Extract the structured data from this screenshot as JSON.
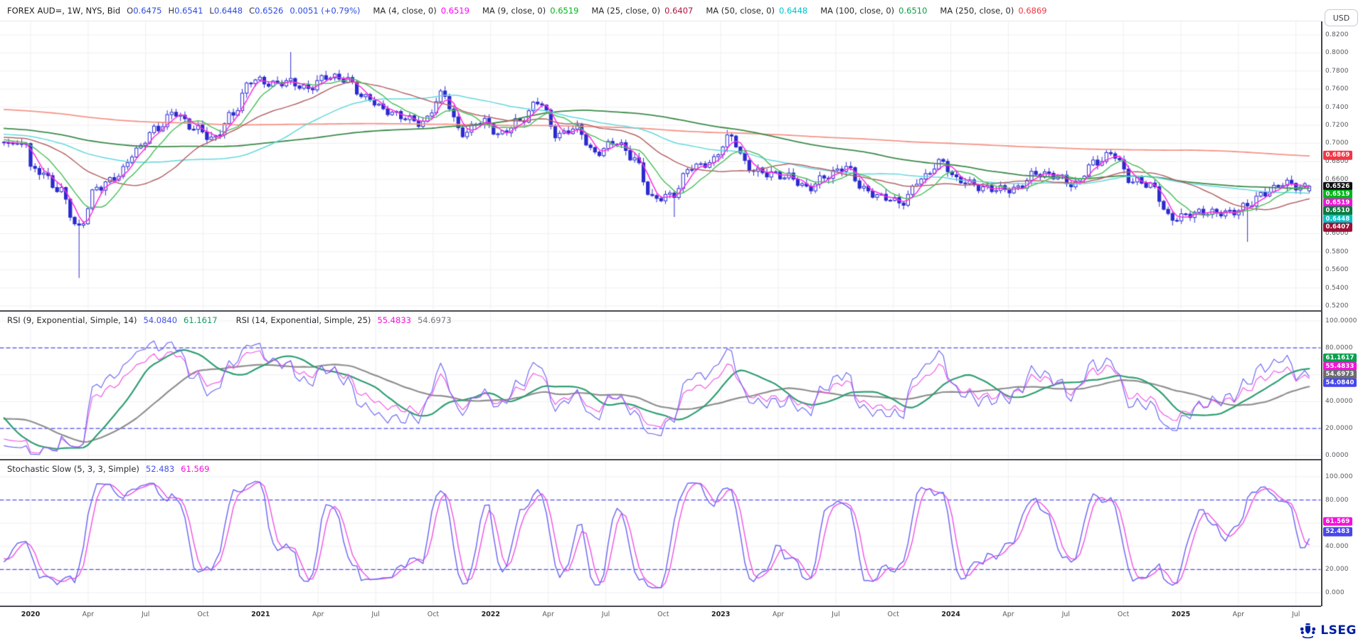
{
  "header": {
    "symbol": "FOREX AUD=, 1W, NYS, Bid",
    "quote_fields": [
      {
        "label": "O",
        "value": "0.6475"
      },
      {
        "label": "H",
        "value": "0.6541"
      },
      {
        "label": "L",
        "value": "0.6448"
      },
      {
        "label": "C",
        "value": "0.6526"
      }
    ],
    "change": "0.0051 (+0.79%)",
    "mas": [
      {
        "label": "MA (4, close, 0)",
        "value": "0.6519",
        "color": "#ff00ff"
      },
      {
        "label": "MA (9, close, 0)",
        "value": "0.6519",
        "color": "#00b61a"
      },
      {
        "label": "MA (25, close, 0)",
        "value": "0.6407",
        "color": "#b0143c"
      },
      {
        "label": "MA (50, close, 0)",
        "value": "0.6448",
        "color": "#00c2cb"
      },
      {
        "label": "MA (100, close, 0)",
        "value": "0.6510",
        "color": "#0d9b42"
      },
      {
        "label": "MA (250, close, 0)",
        "value": "0.6869",
        "color": "#f23645"
      }
    ],
    "currency_button": "USD"
  },
  "main_panel": {
    "y_ticks": [
      {
        "text": "0.8200",
        "value": 0.82
      },
      {
        "text": "0.8000",
        "value": 0.8
      },
      {
        "text": "0.7800",
        "value": 0.78
      },
      {
        "text": "0.7600",
        "value": 0.76
      },
      {
        "text": "0.7400",
        "value": 0.74
      },
      {
        "text": "0.7200",
        "value": 0.72
      },
      {
        "text": "0.7000",
        "value": 0.7
      },
      {
        "text": "0.6800",
        "value": 0.68
      },
      {
        "text": "0.6600",
        "value": 0.66
      },
      {
        "text": "0.6000",
        "value": 0.6
      },
      {
        "text": "0.5800",
        "value": 0.58
      },
      {
        "text": "0.5600",
        "value": 0.56
      },
      {
        "text": "0.5400",
        "value": 0.54
      },
      {
        "text": "0.5200",
        "value": 0.52
      }
    ],
    "badges": [
      {
        "text": "0.6869",
        "value": 0.6869,
        "bg": "#f23645",
        "pin": false
      },
      {
        "text": "0.6526",
        "value": 0.6526,
        "bg": "#101013",
        "pin": true
      },
      {
        "text": "0.6519",
        "value": 0.65192,
        "bg": "#00b61a",
        "pin": false
      },
      {
        "text": "0.6519",
        "value": 0.65188,
        "bg": "#f412d9",
        "pin": false
      },
      {
        "text": "0.6510",
        "value": 0.651,
        "bg": "#0a7a3c",
        "pin": false
      },
      {
        "text": "0.6448",
        "value": 0.6448,
        "bg": "#00c2cb",
        "pin": false
      },
      {
        "text": "0.6407",
        "value": 0.6407,
        "bg": "#9c1237",
        "pin": false
      }
    ]
  },
  "rsi_panel": {
    "legend": {
      "title1": "RSI (9, Exponential, Simple, 14)",
      "value1": "54.0840",
      "value1_color": "#4553e8",
      "value2": "61.1617",
      "value2_color": "#149c62",
      "title2": "RSI (14, Exponential, Simple, 25)",
      "value3": "55.4833",
      "value3_color": "#f412d9",
      "value4": "54.6973",
      "value4_color": "#77777d"
    },
    "y_ticks": [
      {
        "text": "100.0000",
        "value": 100
      },
      {
        "text": "80.0000",
        "value": 80
      },
      {
        "text": "40.0000",
        "value": 40
      },
      {
        "text": "20.0000",
        "value": 20
      },
      {
        "text": "0.0000",
        "value": 0
      }
    ],
    "badges": [
      {
        "text": "61.1617",
        "value": 61.1617,
        "bg": "#0aa04e",
        "pin": false
      },
      {
        "text": "55.4833",
        "value": 55.4833,
        "bg": "#f412d9",
        "pin": false
      },
      {
        "text": "54.6973",
        "value": 54.6973,
        "bg": "#6b6b71",
        "pin": false
      },
      {
        "text": "54.0840",
        "value": 54.084,
        "bg": "#4846ec",
        "pin": true
      }
    ],
    "bands": [
      80,
      20
    ]
  },
  "stoch_panel": {
    "legend": {
      "title": "Stochastic Slow (5, 3, 3, Simple)",
      "value1": "52.483",
      "value1_color": "#4553e8",
      "value2": "61.569",
      "value2_color": "#f412d9"
    },
    "y_ticks": [
      {
        "text": "100.000",
        "value": 100
      },
      {
        "text": "80.000",
        "value": 80
      },
      {
        "text": "40.000",
        "value": 40
      },
      {
        "text": "20.000",
        "value": 20
      },
      {
        "text": "0.000",
        "value": 0
      }
    ],
    "badges": [
      {
        "text": "61.569",
        "value": 61.569,
        "bg": "#f412d9",
        "pin": false
      },
      {
        "text": "52.483",
        "value": 52.483,
        "bg": "#4846ec",
        "pin": true
      }
    ],
    "bands": [
      80,
      20
    ]
  },
  "x_axis": {
    "labels": [
      {
        "text": "2020",
        "year": true
      },
      {
        "text": "Apr"
      },
      {
        "text": "Jul"
      },
      {
        "text": "Oct"
      },
      {
        "text": "2021",
        "year": true
      },
      {
        "text": "Apr"
      },
      {
        "text": "Jul"
      },
      {
        "text": "Oct"
      },
      {
        "text": "2022",
        "year": true
      },
      {
        "text": "Apr"
      },
      {
        "text": "Jul"
      },
      {
        "text": "Oct"
      },
      {
        "text": "2023",
        "year": true
      },
      {
        "text": "Apr"
      },
      {
        "text": "Jul"
      },
      {
        "text": "Oct"
      },
      {
        "text": "2024",
        "year": true
      },
      {
        "text": "Apr"
      },
      {
        "text": "Jul"
      },
      {
        "text": "Oct"
      },
      {
        "text": "2025",
        "year": true
      },
      {
        "text": "Apr"
      },
      {
        "text": "Jul"
      }
    ]
  },
  "branding": {
    "name": "LSEG",
    "color": "#001ea0"
  },
  "chart_data": {
    "type": "candlestick",
    "title": "FOREX AUD=, 1W, NYS, Bid",
    "interval": "weekly",
    "x_range": [
      "2019-11",
      "2025-07"
    ],
    "y_axis_range": [
      0.515,
      0.835
    ],
    "grid": true,
    "candle_color": "#2a2ace",
    "last_candle": {
      "open": 0.6475,
      "high": 0.6541,
      "low": 0.6448,
      "close": 0.6526
    },
    "monthly_close_anchors": {
      "start": "2020-01",
      "values": [
        0.669,
        0.651,
        0.604,
        0.651,
        0.666,
        0.69,
        0.714,
        0.737,
        0.716,
        0.703,
        0.734,
        0.769,
        0.764,
        0.771,
        0.76,
        0.772,
        0.773,
        0.75,
        0.734,
        0.731,
        0.723,
        0.752,
        0.713,
        0.726,
        0.707,
        0.726,
        0.748,
        0.706,
        0.718,
        0.69,
        0.699,
        0.684,
        0.64,
        0.64,
        0.675,
        0.681,
        0.705,
        0.673,
        0.669,
        0.661,
        0.65,
        0.666,
        0.672,
        0.648,
        0.643,
        0.633,
        0.66,
        0.682,
        0.657,
        0.65,
        0.652,
        0.649,
        0.665,
        0.667,
        0.654,
        0.676,
        0.691,
        0.658,
        0.651,
        0.619,
        0.622,
        0.621,
        0.625,
        0.632,
        0.643,
        0.658,
        0.6526
      ]
    },
    "extremes": [
      {
        "month": "2020-03",
        "low": 0.551
      },
      {
        "month": "2021-02",
        "high": 0.801
      },
      {
        "month": "2022-10",
        "low": 0.6185
      },
      {
        "month": "2025-04",
        "low": 0.591
      }
    ],
    "prelude": {
      "weeks": 270,
      "start": 0.783,
      "end": 0.702
    },
    "moving_averages": [
      {
        "period": 4,
        "last": 0.6519,
        "line_color": "#ff2bdf"
      },
      {
        "period": 9,
        "last": 0.6519,
        "line_color": "#4fc162"
      },
      {
        "period": 25,
        "last": 0.6407,
        "line_color": "#b56468"
      },
      {
        "period": 50,
        "last": 0.6448,
        "line_color": "#63d8dc"
      },
      {
        "period": 100,
        "last": 0.651,
        "line_color": "#3d8a4a"
      },
      {
        "period": 250,
        "last": 0.6869,
        "line_color": "#f59488"
      }
    ],
    "rsi": {
      "series": [
        {
          "name": "RSI 9",
          "last": 54.084,
          "color": "#6f6af0",
          "width": 1.2
        },
        {
          "name": "RSI 9 SMA(14)",
          "last": 61.1617,
          "color": "#2f9e72",
          "width": 2.2
        },
        {
          "name": "RSI 14",
          "last": 55.4833,
          "color": "#f05ae6",
          "width": 1.2
        },
        {
          "name": "RSI 14 SMA(25)",
          "last": 54.6973,
          "color": "#8f8f8f",
          "width": 2.2
        }
      ],
      "bands": [
        80,
        20
      ]
    },
    "stochastic": {
      "params": [
        5,
        3,
        3
      ],
      "series": [
        {
          "name": "%K",
          "last": 52.483,
          "color": "#6f6af0",
          "width": 1.5
        },
        {
          "name": "%D",
          "last": 61.569,
          "color": "#f05ae6",
          "width": 1.5
        }
      ],
      "bands": [
        80,
        20
      ]
    },
    "band_line_color": "#4d4df0"
  }
}
